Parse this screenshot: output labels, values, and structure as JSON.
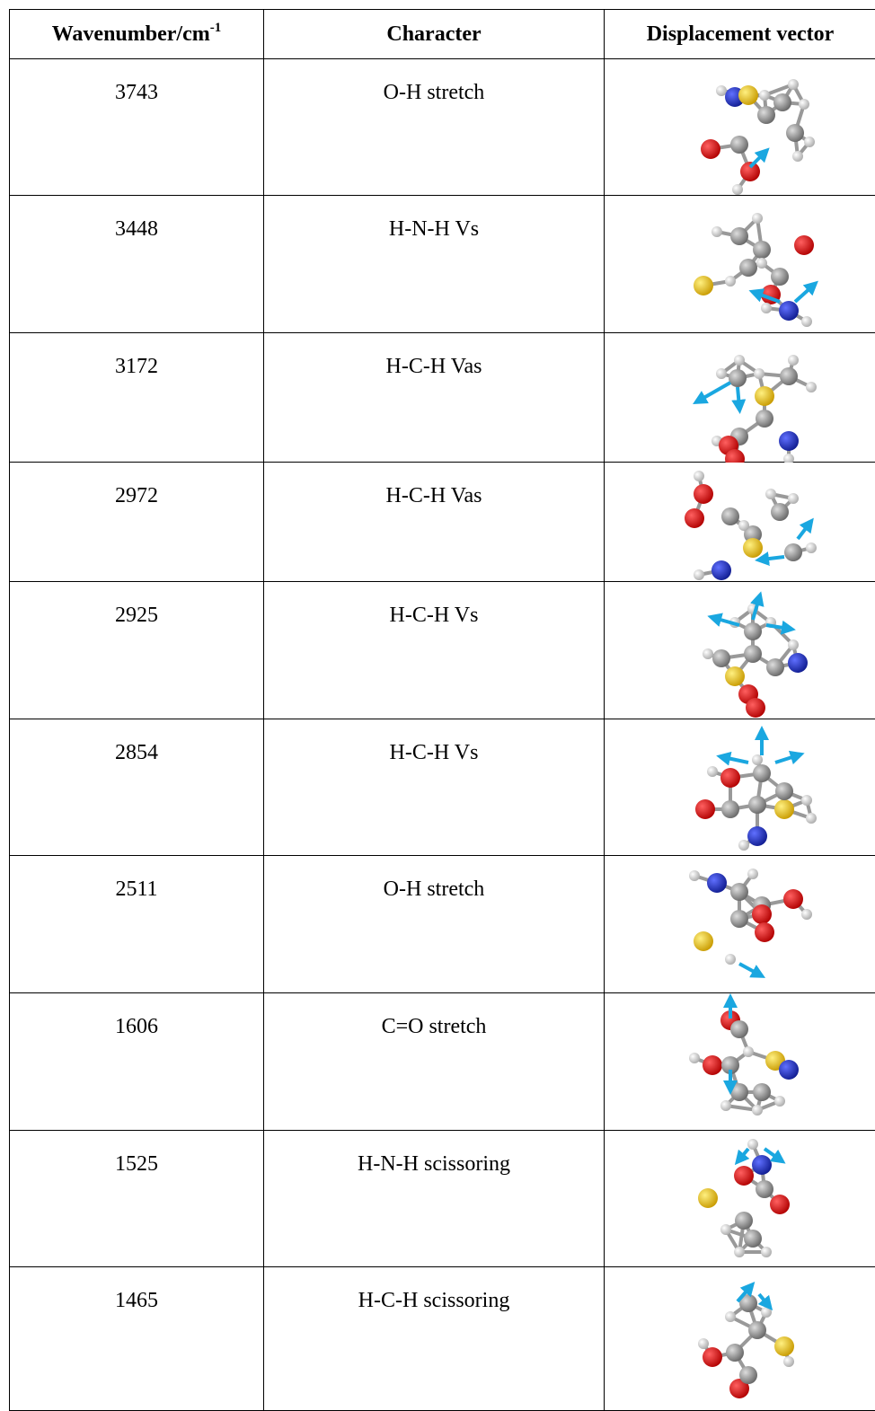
{
  "table": {
    "header": [
      {
        "text": "Wavenumber/cm",
        "superscript": "-1"
      },
      {
        "text": "Character"
      },
      {
        "text": "Displacement vector"
      }
    ],
    "rows": [
      [
        3743,
        "O-H stretch"
      ],
      [
        3448,
        "H-N-H Vs"
      ],
      [
        3172,
        "H-C-H Vas"
      ],
      [
        2972,
        "H-C-H Vas"
      ],
      [
        2925,
        "H-C-H Vs"
      ],
      [
        2854,
        "H-C-H Vs"
      ],
      [
        2511,
        "O-H stretch"
      ],
      [
        1606,
        "C=O stretch"
      ],
      [
        1525,
        "H-N-H scissoring"
      ],
      [
        1465,
        "H-C-H scissoring"
      ]
    ]
  }
}
